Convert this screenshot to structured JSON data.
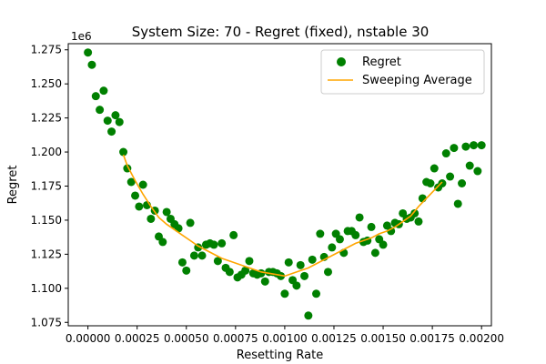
{
  "chart_data": {
    "type": "scatter",
    "title": "System Size: 70 - Regret (fixed), nstable 30",
    "xlabel": "Resetting Rate",
    "ylabel": "Regret",
    "y_multiplier": "1e6",
    "xlim": [
      -0.0001,
      0.00205
    ],
    "ylim": [
      1.0725,
      1.2795
    ],
    "x_ticks": [
      0.0,
      0.00025,
      0.0005,
      0.00075,
      0.001,
      0.00125,
      0.0015,
      0.00175,
      0.002
    ],
    "x_tick_labels": [
      "0.00000",
      "0.00025",
      "0.00050",
      "0.00075",
      "0.00100",
      "0.00125",
      "0.00150",
      "0.00175",
      "0.00200"
    ],
    "y_ticks": [
      1.075,
      1.1,
      1.125,
      1.15,
      1.175,
      1.2,
      1.225,
      1.25,
      1.275
    ],
    "y_tick_labels": [
      "1.075",
      "1.100",
      "1.125",
      "1.150",
      "1.175",
      "1.200",
      "1.225",
      "1.250",
      "1.275"
    ],
    "grid": false,
    "legend_position": "top-right",
    "series": [
      {
        "name": "Regret",
        "kind": "scatter",
        "color": "#008000",
        "points": [
          [
            0.0,
            1.273
          ],
          [
            2e-05,
            1.264
          ],
          [
            4e-05,
            1.241
          ],
          [
            6e-05,
            1.231
          ],
          [
            8e-05,
            1.245
          ],
          [
            0.0001,
            1.223
          ],
          [
            0.00012,
            1.215
          ],
          [
            0.00014,
            1.227
          ],
          [
            0.00016,
            1.222
          ],
          [
            0.00018,
            1.2
          ],
          [
            0.0002,
            1.188
          ],
          [
            0.00022,
            1.178
          ],
          [
            0.00024,
            1.168
          ],
          [
            0.00026,
            1.16
          ],
          [
            0.00028,
            1.176
          ],
          [
            0.0003,
            1.161
          ],
          [
            0.00032,
            1.151
          ],
          [
            0.00034,
            1.157
          ],
          [
            0.00036,
            1.138
          ],
          [
            0.00038,
            1.134
          ],
          [
            0.0004,
            1.156
          ],
          [
            0.00042,
            1.151
          ],
          [
            0.00044,
            1.147
          ],
          [
            0.00046,
            1.144
          ],
          [
            0.00048,
            1.119
          ],
          [
            0.0005,
            1.113
          ],
          [
            0.00052,
            1.148
          ],
          [
            0.00054,
            1.124
          ],
          [
            0.00056,
            1.13
          ],
          [
            0.00058,
            1.124
          ],
          [
            0.0006,
            1.132
          ],
          [
            0.00062,
            1.133
          ],
          [
            0.00064,
            1.132
          ],
          [
            0.00066,
            1.12
          ],
          [
            0.00068,
            1.133
          ],
          [
            0.0007,
            1.115
          ],
          [
            0.00072,
            1.112
          ],
          [
            0.00074,
            1.139
          ],
          [
            0.00076,
            1.108
          ],
          [
            0.00078,
            1.11
          ],
          [
            0.0008,
            1.113
          ],
          [
            0.00082,
            1.12
          ],
          [
            0.00084,
            1.111
          ],
          [
            0.00086,
            1.11
          ],
          [
            0.00088,
            1.111
          ],
          [
            0.0009,
            1.105
          ],
          [
            0.00092,
            1.112
          ],
          [
            0.00094,
            1.112
          ],
          [
            0.00096,
            1.111
          ],
          [
            0.00098,
            1.109
          ],
          [
            0.001,
            1.096
          ],
          [
            0.00102,
            1.119
          ],
          [
            0.00104,
            1.106
          ],
          [
            0.00106,
            1.102
          ],
          [
            0.00108,
            1.117
          ],
          [
            0.0011,
            1.109
          ],
          [
            0.00112,
            1.08
          ],
          [
            0.00114,
            1.121
          ],
          [
            0.00116,
            1.096
          ],
          [
            0.00118,
            1.14
          ],
          [
            0.0012,
            1.123
          ],
          [
            0.00122,
            1.112
          ],
          [
            0.00124,
            1.13
          ],
          [
            0.00126,
            1.14
          ],
          [
            0.00128,
            1.136
          ],
          [
            0.0013,
            1.126
          ],
          [
            0.00132,
            1.142
          ],
          [
            0.00134,
            1.142
          ],
          [
            0.00136,
            1.139
          ],
          [
            0.00138,
            1.152
          ],
          [
            0.0014,
            1.134
          ],
          [
            0.00142,
            1.135
          ],
          [
            0.00144,
            1.145
          ],
          [
            0.00146,
            1.126
          ],
          [
            0.00148,
            1.136
          ],
          [
            0.0015,
            1.132
          ],
          [
            0.00152,
            1.146
          ],
          [
            0.00154,
            1.142
          ],
          [
            0.00156,
            1.148
          ],
          [
            0.00158,
            1.147
          ],
          [
            0.0016,
            1.155
          ],
          [
            0.00162,
            1.151
          ],
          [
            0.00164,
            1.152
          ],
          [
            0.00166,
            1.155
          ],
          [
            0.00168,
            1.149
          ],
          [
            0.0017,
            1.166
          ],
          [
            0.00172,
            1.178
          ],
          [
            0.00174,
            1.177
          ],
          [
            0.00176,
            1.188
          ],
          [
            0.00178,
            1.174
          ],
          [
            0.0018,
            1.177
          ],
          [
            0.00182,
            1.199
          ],
          [
            0.00184,
            1.182
          ],
          [
            0.00186,
            1.203
          ],
          [
            0.00188,
            1.162
          ],
          [
            0.0019,
            1.177
          ],
          [
            0.00192,
            1.204
          ],
          [
            0.00194,
            1.19
          ],
          [
            0.00196,
            1.205
          ],
          [
            0.00198,
            1.186
          ],
          [
            0.002,
            1.205
          ]
        ]
      },
      {
        "name": "Sweeping Average",
        "kind": "line",
        "color": "#ffa500",
        "points": [
          [
            0.00018,
            1.198
          ],
          [
            0.0002,
            1.19
          ],
          [
            0.00024,
            1.179
          ],
          [
            0.00028,
            1.169
          ],
          [
            0.00032,
            1.16
          ],
          [
            0.00036,
            1.152
          ],
          [
            0.0004,
            1.147
          ],
          [
            0.00044,
            1.143
          ],
          [
            0.00048,
            1.139
          ],
          [
            0.00052,
            1.135
          ],
          [
            0.00056,
            1.131
          ],
          [
            0.0006,
            1.128
          ],
          [
            0.00064,
            1.125
          ],
          [
            0.00068,
            1.122
          ],
          [
            0.00072,
            1.12
          ],
          [
            0.00076,
            1.118
          ],
          [
            0.0008,
            1.116
          ],
          [
            0.00084,
            1.114
          ],
          [
            0.00088,
            1.112
          ],
          [
            0.00092,
            1.111
          ],
          [
            0.00096,
            1.11
          ],
          [
            0.001,
            1.109
          ],
          [
            0.00104,
            1.111
          ],
          [
            0.00108,
            1.113
          ],
          [
            0.00112,
            1.115
          ],
          [
            0.00116,
            1.118
          ],
          [
            0.0012,
            1.121
          ],
          [
            0.00124,
            1.124
          ],
          [
            0.00128,
            1.127
          ],
          [
            0.00132,
            1.13
          ],
          [
            0.00136,
            1.133
          ],
          [
            0.0014,
            1.135
          ],
          [
            0.00144,
            1.137
          ],
          [
            0.00148,
            1.14
          ],
          [
            0.00152,
            1.142
          ],
          [
            0.00156,
            1.145
          ],
          [
            0.0016,
            1.149
          ],
          [
            0.00164,
            1.153
          ],
          [
            0.00168,
            1.16
          ],
          [
            0.00172,
            1.166
          ],
          [
            0.00176,
            1.172
          ],
          [
            0.0018,
            1.178
          ]
        ]
      }
    ]
  }
}
